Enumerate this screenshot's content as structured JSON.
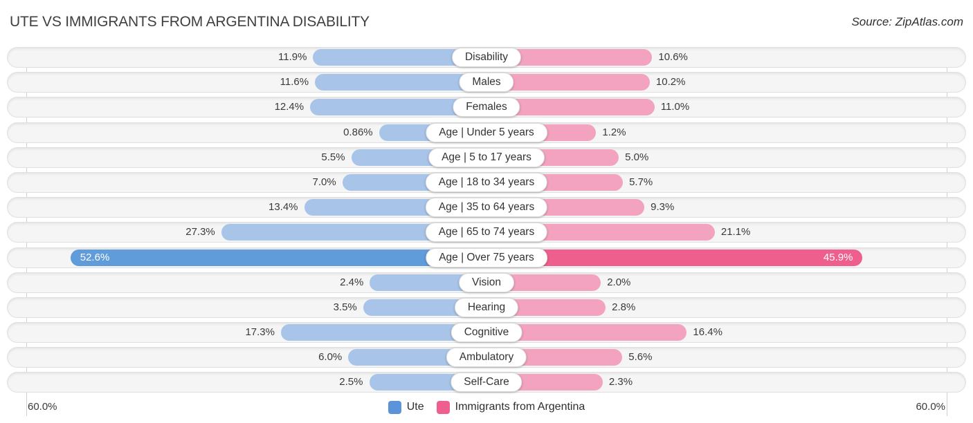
{
  "header": {
    "title": "UTE VS IMMIGRANTS FROM ARGENTINA DISABILITY",
    "source": "Source: ZipAtlas.com"
  },
  "chart_data": {
    "type": "bar",
    "subtype": "diverging-horizontal-pyramid",
    "title": "UTE VS IMMIGRANTS FROM ARGENTINA DISABILITY",
    "categories": [
      "Disability",
      "Males",
      "Females",
      "Age | Under 5 years",
      "Age | 5 to 17 years",
      "Age | 18 to 34 years",
      "Age | 35 to 64 years",
      "Age | 65 to 74 years",
      "Age | Over 75 years",
      "Vision",
      "Hearing",
      "Cognitive",
      "Ambulatory",
      "Self-Care"
    ],
    "series": [
      {
        "name": "Ute",
        "side": "left",
        "color": "#5b94d8",
        "bar_color": "#a8c5e9",
        "emphasis_color": "#609bda",
        "values": [
          11.9,
          11.6,
          12.4,
          0.86,
          5.5,
          7.0,
          13.4,
          27.3,
          52.6,
          2.4,
          3.5,
          17.3,
          6.0,
          2.5
        ],
        "labels": [
          "11.9%",
          "11.6%",
          "12.4%",
          "0.86%",
          "5.5%",
          "7.0%",
          "13.4%",
          "27.3%",
          "52.6%",
          "2.4%",
          "3.5%",
          "17.3%",
          "6.0%",
          "2.5%"
        ]
      },
      {
        "name": "Immigrants from Argentina",
        "side": "right",
        "color": "#ee5f8e",
        "bar_color": "#f3a3bf",
        "emphasis_color": "#ee5f8e",
        "values": [
          10.6,
          10.2,
          11.0,
          1.2,
          5.0,
          5.7,
          9.3,
          21.1,
          45.9,
          2.0,
          2.8,
          16.4,
          5.6,
          2.3
        ],
        "labels": [
          "10.6%",
          "10.2%",
          "11.0%",
          "1.2%",
          "5.0%",
          "5.7%",
          "9.3%",
          "21.1%",
          "45.9%",
          "2.0%",
          "2.8%",
          "16.4%",
          "5.6%",
          "2.3%"
        ]
      }
    ],
    "emphasized_index": 8,
    "axis": {
      "max": 60,
      "left_label": "60.0%",
      "right_label": "60.0%"
    },
    "legend": [
      {
        "label": "Ute",
        "color": "#5b94d8"
      },
      {
        "label": "Immigrants from Argentina",
        "color": "#ee5f8e"
      }
    ],
    "layout": {
      "legend_position": "bottom-center",
      "gridlines": "outer-60pct-only"
    }
  }
}
